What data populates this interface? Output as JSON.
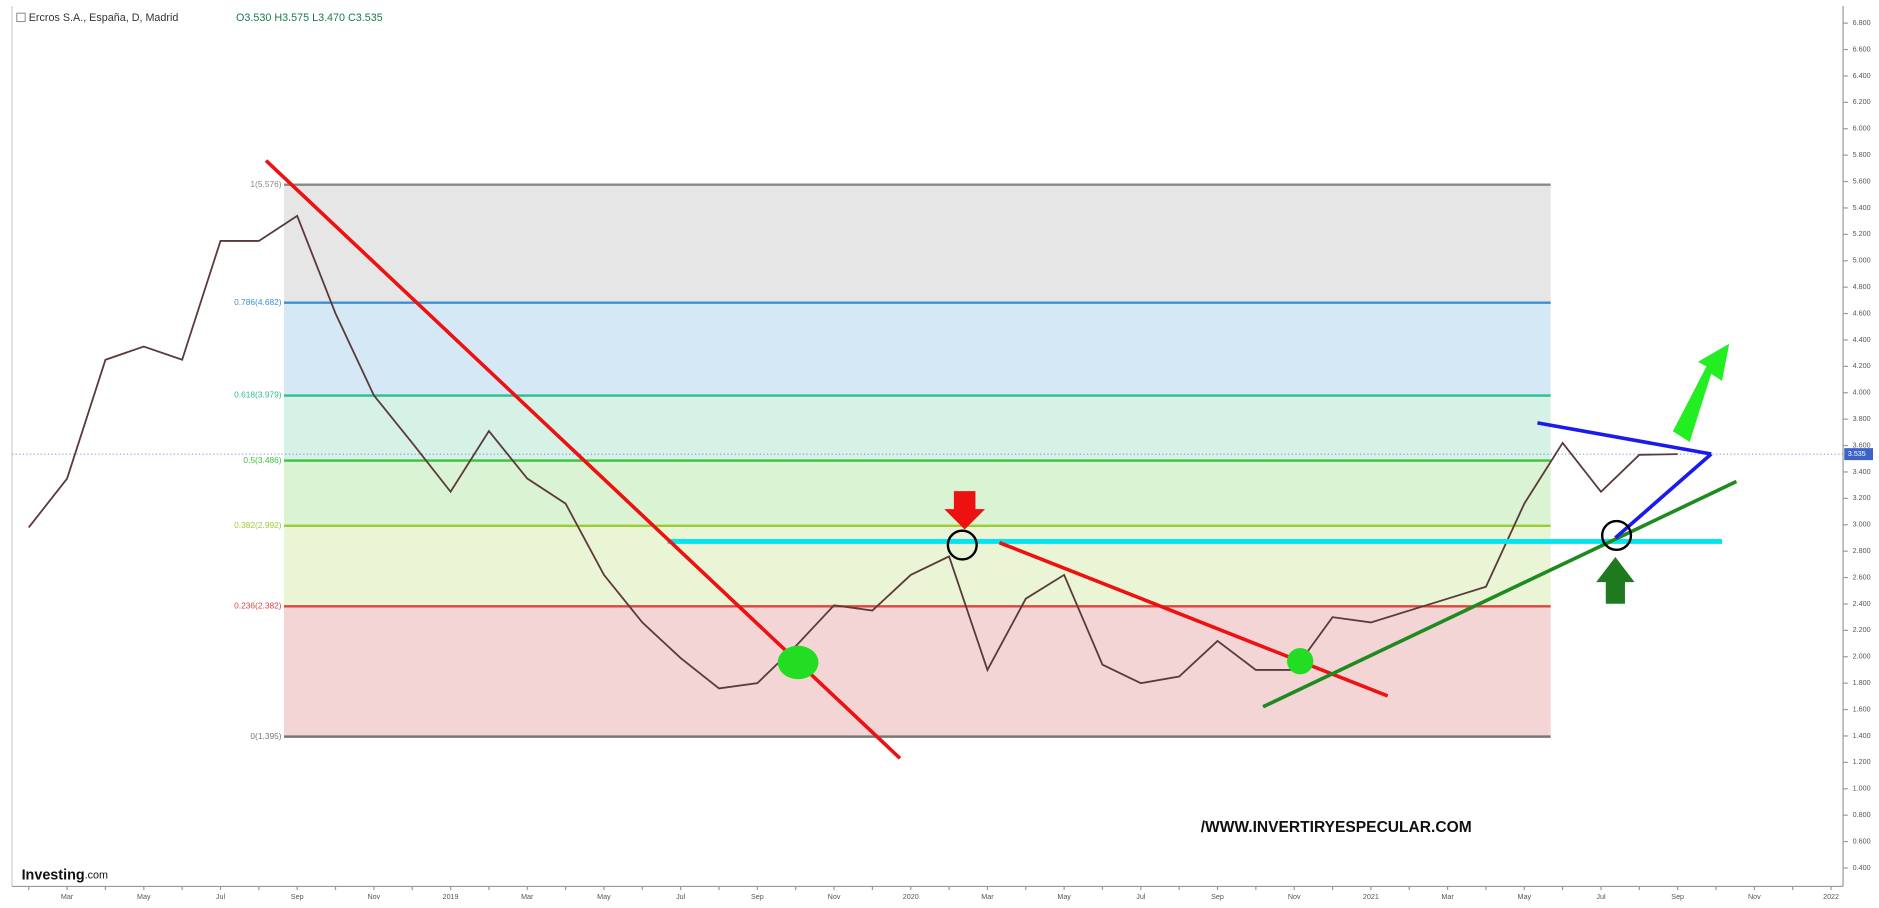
{
  "chart_data": {
    "type": "line",
    "title": "Ercros S.A., España, D, Madrid",
    "ohlc": "O3.530 H3.575 L3.470 C3.535",
    "categories": [
      null,
      "Mar",
      null,
      "May",
      null,
      "Jul",
      null,
      "Sep",
      null,
      "Nov",
      null,
      "2019",
      null,
      "Mar",
      null,
      "May",
      null,
      "Jul",
      null,
      "Sep",
      null,
      "Nov",
      null,
      "2020",
      null,
      "Mar",
      null,
      "May",
      null,
      "Jul",
      null,
      "Sep",
      null,
      "Nov",
      null,
      "2021",
      null,
      "Mar",
      null,
      "May",
      null,
      "Jul",
      null,
      "Sep",
      null,
      "Nov",
      null,
      "2022"
    ],
    "series": [
      {
        "color": "#5a3a3a",
        "values": [
          2.98,
          3.35,
          4.25,
          4.35,
          4.25,
          5.15,
          5.15,
          5.34,
          4.6,
          3.98,
          3.62,
          3.25,
          3.71,
          3.35,
          3.16,
          2.62,
          2.26,
          1.99,
          1.76,
          1.8,
          2.08,
          2.39,
          2.35,
          2.62,
          2.76,
          1.9,
          2.44,
          2.62,
          1.94,
          1.8,
          1.85,
          2.12,
          1.9,
          1.9,
          2.3,
          2.26,
          2.35,
          2.44,
          2.53,
          3.16,
          3.62,
          3.25,
          3.53,
          3.535,
          null,
          null,
          null,
          null
        ]
      }
    ],
    "ylim": [
      0.26,
      6.93
    ],
    "yticks": [
      {
        "value": 0.4,
        "label": "0.400"
      },
      {
        "value": 0.6,
        "label": "0.600"
      },
      {
        "value": 0.8,
        "label": "0.800"
      },
      {
        "value": 1.0,
        "label": "1.000"
      },
      {
        "value": 1.2,
        "label": "1.200"
      },
      {
        "value": 1.4,
        "label": "1.400"
      },
      {
        "value": 1.6,
        "label": "1.600"
      },
      {
        "value": 1.8,
        "label": "1.800"
      },
      {
        "value": 2.0,
        "label": "2.000"
      },
      {
        "value": 2.2,
        "label": "2.200"
      },
      {
        "value": 2.4,
        "label": "2.400"
      },
      {
        "value": 2.6,
        "label": "2.600"
      },
      {
        "value": 2.8,
        "label": "2.800"
      },
      {
        "value": 3.0,
        "label": "3.000"
      },
      {
        "value": 3.2,
        "label": "3.200"
      },
      {
        "value": 3.4,
        "label": "3.400"
      },
      {
        "value": 3.6,
        "label": "3.600"
      },
      {
        "value": 3.8,
        "label": "3.800"
      },
      {
        "value": 4.0,
        "label": "4.000"
      },
      {
        "value": 4.2,
        "label": "4.200"
      },
      {
        "value": 4.4,
        "label": "4.400"
      },
      {
        "value": 4.6,
        "label": "4.600"
      },
      {
        "value": 4.8,
        "label": "4.800"
      },
      {
        "value": 5.0,
        "label": "5.000"
      },
      {
        "value": 5.2,
        "label": "5.200"
      },
      {
        "value": 5.4,
        "label": "5.400"
      },
      {
        "value": 5.6,
        "label": "5.600"
      },
      {
        "value": 5.8,
        "label": "5.800"
      },
      {
        "value": 6.0,
        "label": "6.000"
      },
      {
        "value": 6.2,
        "label": "6.200"
      },
      {
        "value": 6.4,
        "label": "6.400"
      },
      {
        "value": 6.6,
        "label": "6.600"
      },
      {
        "value": 6.8,
        "label": "6.800"
      }
    ],
    "last_price": {
      "value": 3.535,
      "label": "3.535"
    },
    "fib_levels": [
      {
        "value": 5.576,
        "label": "1(5.576)",
        "color": "#888888",
        "fill": "#e6e6e6"
      },
      {
        "value": 4.682,
        "label": "0.786(4.682)",
        "color": "#3d8fd1",
        "fill": "#d5e8f5"
      },
      {
        "value": 3.979,
        "label": "0.618(3.979)",
        "color": "#2bbf8f",
        "fill": "#d6f2e6"
      },
      {
        "value": 3.486,
        "label": "0.5(3.486)",
        "color": "#3cc13c",
        "fill": "#d9f3d3"
      },
      {
        "value": 2.992,
        "label": "0.382(2.992)",
        "color": "#9acd32",
        "fill": "#eaf5d5"
      },
      {
        "value": 2.382,
        "label": "0.236(2.382)",
        "color": "#e0443c",
        "fill": "#f4d5d5"
      },
      {
        "value": 1.395,
        "label": "0(1.395)",
        "color": "#777777",
        "fill": null
      }
    ],
    "watermark": "/WWW.INVERTIRYESPECULAR.COM",
    "brand": "Investing",
    "brand_suffix": ".com"
  }
}
